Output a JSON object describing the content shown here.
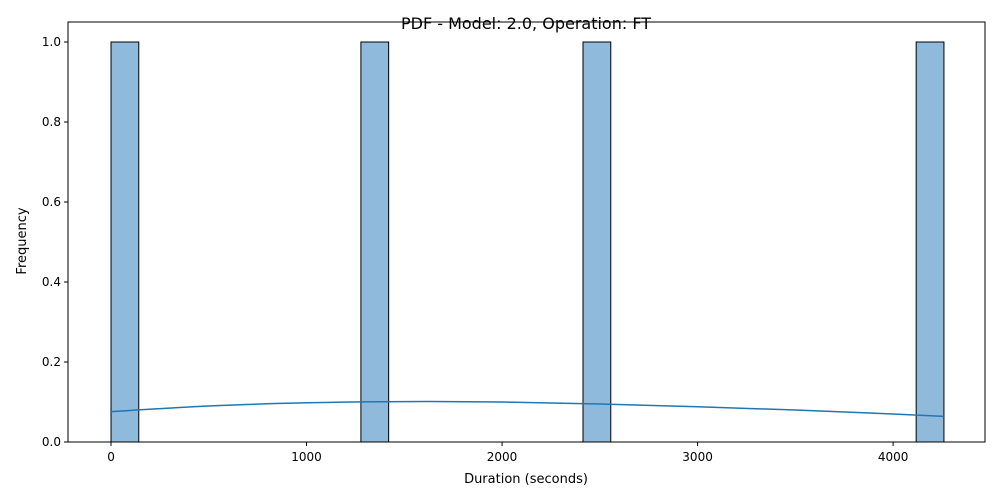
{
  "chart_data": {
    "type": "bar",
    "title": "PDF - Model: 2.0, Operation: FT",
    "xlabel": "Duration (seconds)",
    "ylabel": "Frequency",
    "xlim": [
      -220,
      4470
    ],
    "ylim": [
      0,
      1.05
    ],
    "xticks": [
      0,
      1000,
      2000,
      3000,
      4000
    ],
    "xtick_labels": [
      "0",
      "1000",
      "2000",
      "3000",
      "4000"
    ],
    "yticks": [
      0,
      0.2,
      0.4,
      0.6,
      0.8,
      1.0
    ],
    "ytick_labels": [
      "0.0",
      "0.2",
      "0.4",
      "0.6",
      "0.8",
      "1.0"
    ],
    "grid": false,
    "bars": [
      {
        "x_start": 0,
        "x_end": 142,
        "value": 1
      },
      {
        "x_start": 1278,
        "x_end": 1420,
        "value": 1
      },
      {
        "x_start": 2414,
        "x_end": 2556,
        "value": 1
      },
      {
        "x_start": 4118,
        "x_end": 4260,
        "value": 1
      }
    ],
    "kde": {
      "x": [
        0,
        500,
        1000,
        1500,
        2000,
        2500,
        3000,
        3500,
        4000,
        4260
      ],
      "y": [
        0.076,
        0.09,
        0.098,
        0.101,
        0.1,
        0.095,
        0.088,
        0.08,
        0.07,
        0.064
      ]
    },
    "colors": {
      "bar_fill": "#8fbadc",
      "bar_edge": "#000000",
      "kde_line": "#1f77b4"
    }
  }
}
